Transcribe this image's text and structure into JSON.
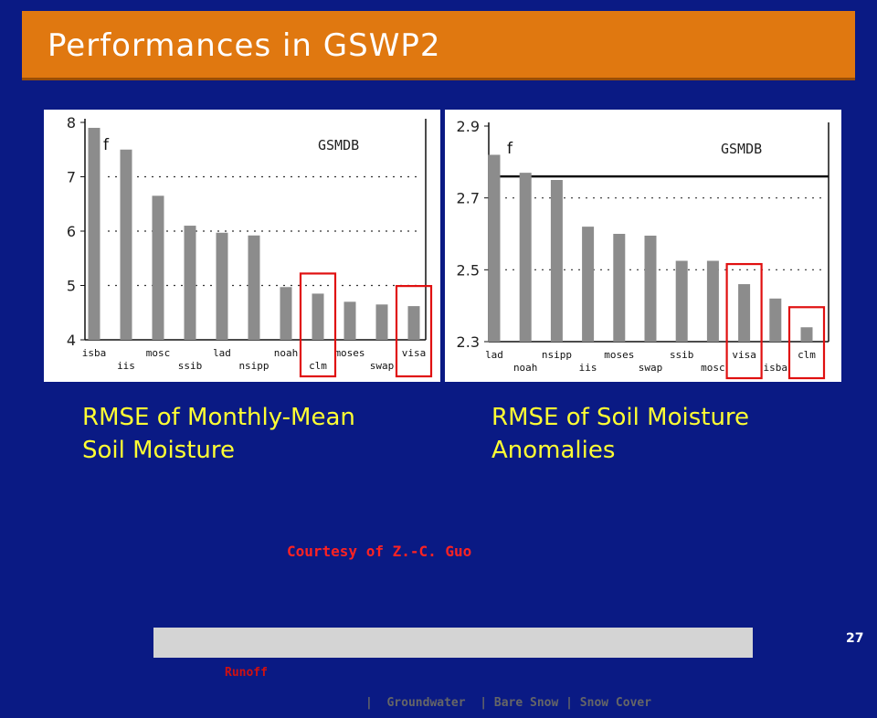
{
  "slide": {
    "title": "Performances in GSWP2",
    "caption_left": [
      "RMSE of Monthly-Mean",
      "Soil Moisture"
    ],
    "caption_right": [
      "RMSE of Soil Moisture",
      "Anomalies"
    ],
    "courtesy": "Courtesy of Z.-C. Guo",
    "footer_runoff": "Runoff",
    "footer_rest": "|  Groundwater  | Bare Snow | Snow Cover",
    "footer_sep": "|",
    "page_number": "27"
  },
  "colors": {
    "background": "#0a1a84",
    "title_bar": "#e07810",
    "caption": "#ffff33",
    "bar": "#8c8c8c",
    "highlight_box": "#e01010"
  },
  "chart_data": [
    {
      "type": "bar",
      "annotation": "f",
      "legend_label": "GSMDB",
      "categories": [
        "isba",
        "iis",
        "mosc",
        "ssib",
        "lad",
        "nsipp",
        "noah",
        "clm",
        "moses",
        "swap",
        "visa"
      ],
      "values": [
        7.9,
        7.5,
        6.65,
        6.1,
        5.97,
        5.92,
        4.97,
        4.85,
        4.7,
        4.65,
        4.62
      ],
      "ylim": [
        4,
        8
      ],
      "yticks": [
        4,
        5,
        6,
        7,
        8
      ],
      "grid": "dotted-horizontal",
      "highlighted": [
        "clm",
        "visa"
      ]
    },
    {
      "type": "bar",
      "annotation": "f",
      "legend_label": "GSMDB",
      "categories": [
        "lad",
        "noah",
        "nsipp",
        "iis",
        "moses",
        "swap",
        "ssib",
        "mosc",
        "visa",
        "isba",
        "clm"
      ],
      "values": [
        2.82,
        2.77,
        2.75,
        2.62,
        2.6,
        2.595,
        2.525,
        2.525,
        2.46,
        2.42,
        2.34
      ],
      "ylim": [
        2.3,
        2.9
      ],
      "yticks": [
        "2.3",
        "2.5",
        "2.7",
        "2.9"
      ],
      "reference_line": 2.76,
      "grid": "dotted-horizontal",
      "highlighted": [
        "visa",
        "clm"
      ]
    }
  ]
}
